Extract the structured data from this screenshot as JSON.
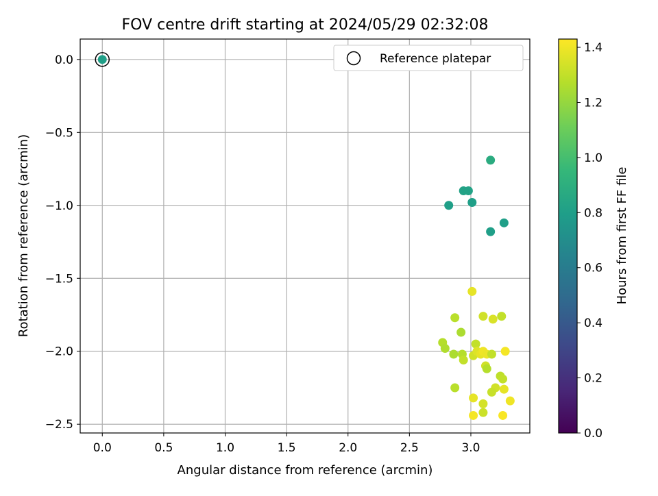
{
  "chart_data": {
    "type": "scatter",
    "title": "FOV centre drift starting at 2024/05/29 02:32:08",
    "xlabel": "Angular distance from reference (arcmin)",
    "ylabel": "Rotation from reference (arcmin)",
    "xlim": [
      -0.18,
      3.48
    ],
    "ylim": [
      -2.56,
      0.14
    ],
    "x_ticks": [
      0.0,
      0.5,
      1.0,
      1.5,
      2.0,
      2.5,
      3.0
    ],
    "x_tick_labels": [
      "0.0",
      "0.5",
      "1.0",
      "1.5",
      "2.0",
      "2.5",
      "3.0"
    ],
    "y_ticks": [
      0.0,
      -0.5,
      -1.0,
      -1.5,
      -2.0,
      -2.5
    ],
    "y_tick_labels": [
      "0.0",
      "−0.5",
      "−1.0",
      "−1.5",
      "−2.0",
      "−2.5"
    ],
    "grid": true,
    "legend": {
      "placement": "top-right",
      "entries": [
        "Reference platepar"
      ]
    },
    "colorbar": {
      "label": "Hours from first FF file",
      "range": [
        0.0,
        1.43
      ],
      "ticks": [
        0.0,
        0.2,
        0.4,
        0.6,
        0.8,
        1.0,
        1.2,
        1.4
      ],
      "tick_labels": [
        "0.0",
        "0.2",
        "0.4",
        "0.6",
        "0.8",
        "1.0",
        "1.2",
        "1.4"
      ],
      "colormap": "viridis",
      "stops": [
        "#440154",
        "#482878",
        "#3e4989",
        "#31688e",
        "#26828e",
        "#1f9e89",
        "#35b779",
        "#6ece58",
        "#b5de2b",
        "#fde725"
      ]
    },
    "reference": {
      "x": 0.0,
      "y": 0.0
    },
    "points": [
      {
        "x": 0.0,
        "y": 0.0,
        "c": 0.8
      },
      {
        "x": 3.16,
        "y": -0.69,
        "c": 0.88
      },
      {
        "x": 2.94,
        "y": -0.9,
        "c": 0.82
      },
      {
        "x": 2.98,
        "y": -0.9,
        "c": 0.82
      },
      {
        "x": 2.82,
        "y": -1.0,
        "c": 0.8
      },
      {
        "x": 3.01,
        "y": -0.98,
        "c": 0.8
      },
      {
        "x": 3.27,
        "y": -1.12,
        "c": 0.8
      },
      {
        "x": 3.16,
        "y": -1.18,
        "c": 0.8
      },
      {
        "x": 3.01,
        "y": -1.59,
        "c": 1.38
      },
      {
        "x": 2.87,
        "y": -1.77,
        "c": 1.28
      },
      {
        "x": 3.1,
        "y": -1.76,
        "c": 1.33
      },
      {
        "x": 3.18,
        "y": -1.78,
        "c": 1.35
      },
      {
        "x": 3.25,
        "y": -1.76,
        "c": 1.3
      },
      {
        "x": 2.92,
        "y": -1.87,
        "c": 1.25
      },
      {
        "x": 2.77,
        "y": -1.94,
        "c": 1.27
      },
      {
        "x": 3.04,
        "y": -1.95,
        "c": 1.3
      },
      {
        "x": 2.79,
        "y": -1.98,
        "c": 1.26
      },
      {
        "x": 2.86,
        "y": -2.02,
        "c": 1.25
      },
      {
        "x": 2.93,
        "y": -2.02,
        "c": 1.27
      },
      {
        "x": 2.94,
        "y": -2.06,
        "c": 1.3
      },
      {
        "x": 3.02,
        "y": -2.03,
        "c": 1.33
      },
      {
        "x": 3.05,
        "y": -2.0,
        "c": 1.36
      },
      {
        "x": 3.08,
        "y": -2.02,
        "c": 1.38
      },
      {
        "x": 3.1,
        "y": -2.0,
        "c": 1.4
      },
      {
        "x": 3.13,
        "y": -2.02,
        "c": 1.39
      },
      {
        "x": 3.17,
        "y": -2.02,
        "c": 1.3
      },
      {
        "x": 3.12,
        "y": -2.1,
        "c": 1.33
      },
      {
        "x": 3.13,
        "y": -2.12,
        "c": 1.27
      },
      {
        "x": 3.28,
        "y": -2.0,
        "c": 1.41
      },
      {
        "x": 3.24,
        "y": -2.17,
        "c": 1.29
      },
      {
        "x": 3.26,
        "y": -2.19,
        "c": 1.3
      },
      {
        "x": 2.87,
        "y": -2.25,
        "c": 1.28
      },
      {
        "x": 3.2,
        "y": -2.25,
        "c": 1.33
      },
      {
        "x": 3.17,
        "y": -2.28,
        "c": 1.31
      },
      {
        "x": 3.27,
        "y": -2.26,
        "c": 1.38
      },
      {
        "x": 3.02,
        "y": -2.32,
        "c": 1.38
      },
      {
        "x": 3.1,
        "y": -2.36,
        "c": 1.34
      },
      {
        "x": 3.32,
        "y": -2.34,
        "c": 1.4
      },
      {
        "x": 3.1,
        "y": -2.42,
        "c": 1.32
      },
      {
        "x": 3.02,
        "y": -2.44,
        "c": 1.41
      },
      {
        "x": 3.26,
        "y": -2.44,
        "c": 1.42
      }
    ]
  }
}
